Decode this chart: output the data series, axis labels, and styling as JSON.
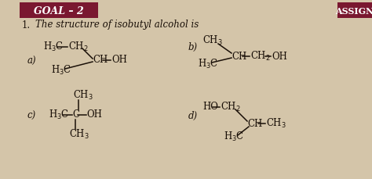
{
  "title": "GOAL – 2",
  "assign_text": "ASSIGN",
  "question": "1.    The structure of isobutyl alcohol is",
  "bg_color": "#d4c5a9",
  "page_color": "#e8dcc8",
  "header_bg": "#7a1830",
  "text_color": "#1a1008",
  "font_size": 8.5
}
